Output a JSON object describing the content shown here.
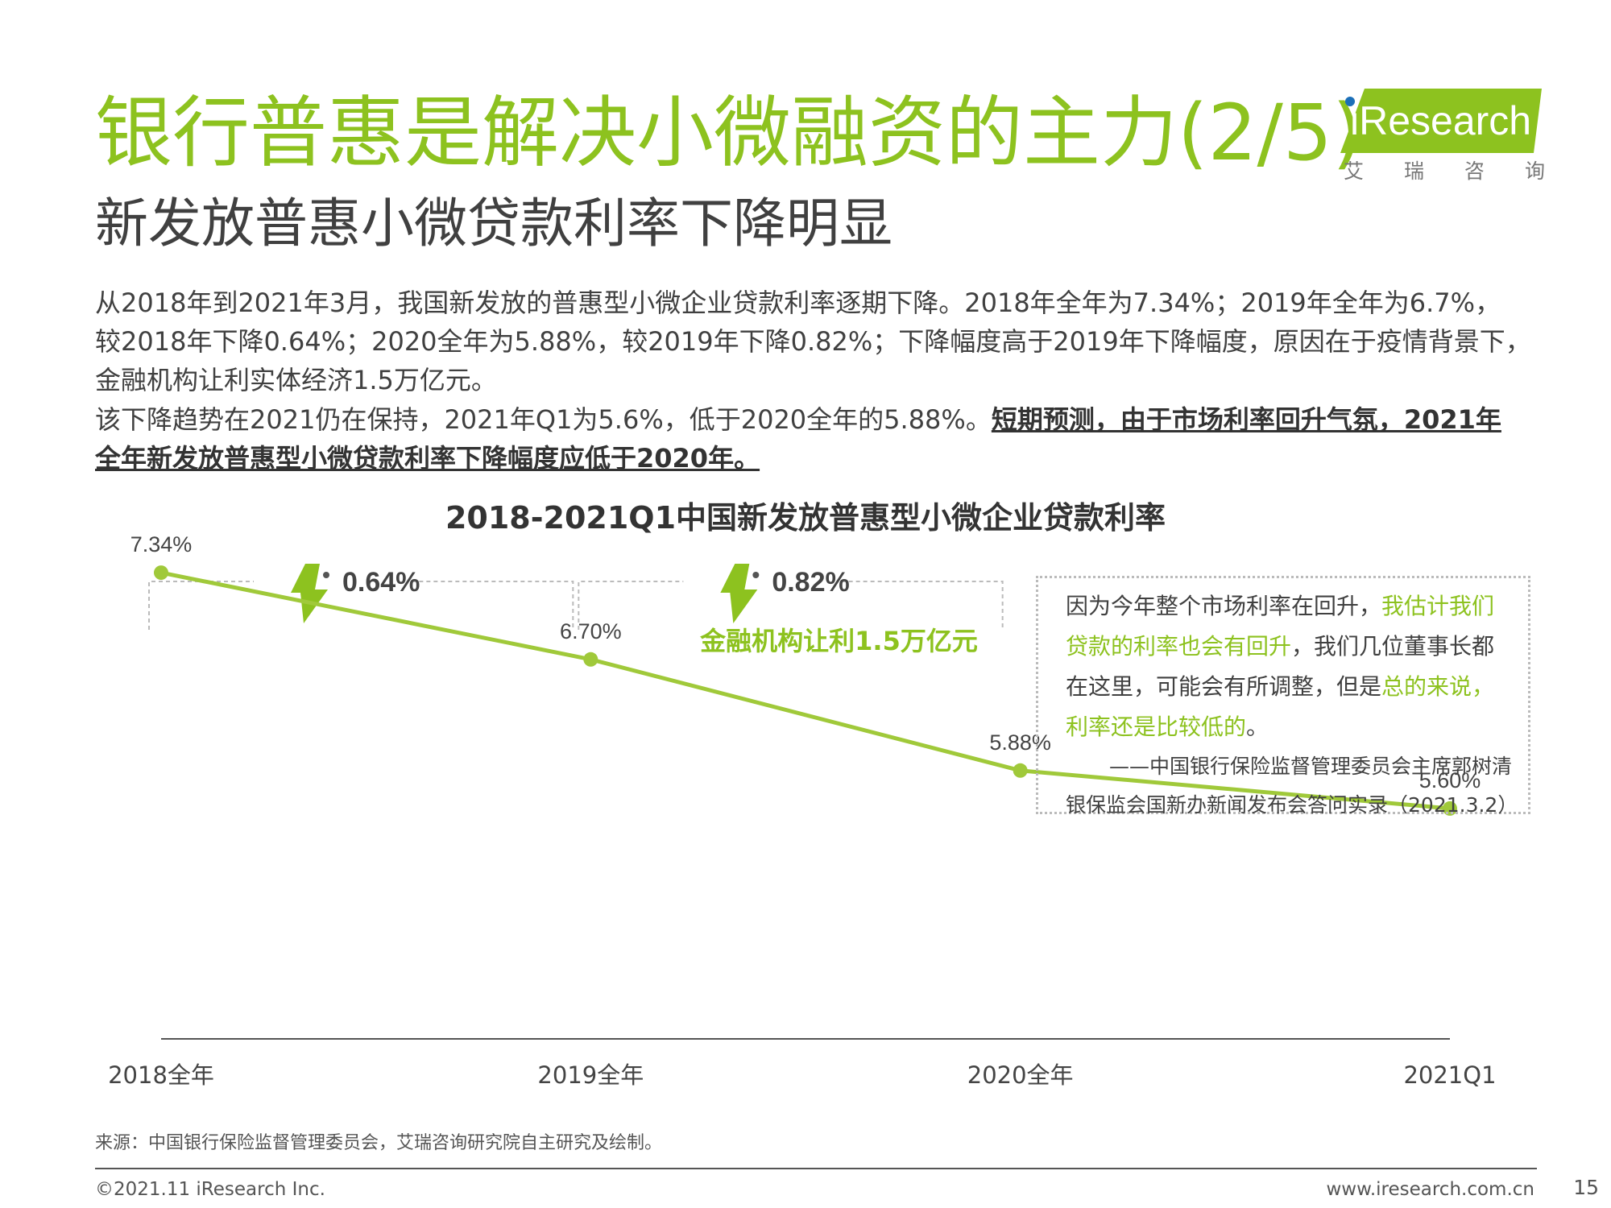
{
  "header": {
    "title": "银行普惠是解决小微融资的主力(2/5)",
    "subtitle": "新发放普惠小微贷款利率下降明显"
  },
  "logo": {
    "wordmark": "iResearch",
    "cn_chars": [
      "艾",
      "瑞",
      "咨",
      "询"
    ]
  },
  "body": {
    "para1": "从2018年到2021年3月，我国新发放的普惠型小微企业贷款利率逐期下降。2018年全年为7.34%；2019年全年为6.7%，较2018年下降0.64%；2020全年为5.88%，较2019年下降0.82%；下降幅度高于2019年下降幅度，原因在于疫情背景下，金融机构让利实体经济1.5万亿元。",
    "para1_lines": [
      "从2018年到2021年3月，我国新发放的普惠型小微企业贷款利率逐期下降。2018年全年为7.34%；2019年全年为6.7%，",
      "较2018年下降0.64%；2020全年为5.88%，较2019年下降0.82%；下降幅度高于2019年下降幅度，原因在于疫情背景下，",
      "金融机构让利实体经济1.5万亿元。"
    ],
    "para2_normal": "该下降趋势在2021仍在保持，2021年Q1为5.6%，低于2020全年的5.88%。",
    "para2_bold_line1": "短期预测，由于市场利率回升气氛，2021年",
    "para2_bold_line2": "全年新发放普惠型小微贷款利率下降幅度应低于2020年。"
  },
  "chart_data": {
    "type": "line",
    "title": "2018-2021Q1中国新发放普惠型小微企业贷款利率",
    "categories": [
      "2018全年",
      "2019全年",
      "2020全年",
      "2021Q1"
    ],
    "values": [
      7.34,
      6.7,
      5.88,
      5.6
    ],
    "data_labels": [
      "7.34%",
      "6.70%",
      "5.88%",
      "5.60%"
    ],
    "ylim": [
      3.9,
      8.0
    ],
    "grid": false,
    "annotations": [
      {
        "text": "0.64%",
        "from": "2018全年",
        "to": "2019全年"
      },
      {
        "text": "0.82%",
        "from": "2019全年",
        "to": "2020全年",
        "note": "金融机构让利1.5万亿元"
      }
    ],
    "color": "#a0c93a"
  },
  "quote": {
    "seg1": "因为今年整个市场利率在回升，",
    "seg2": "我估计我们贷款的利率也会有回升",
    "seg3": "，我们几位董事长都在这里，可能会有所调整，但是",
    "seg4": "总的来说，利率还是比较低的",
    "seg5": "。",
    "attribution1": "——中国银行保险监督管理委员会主席郭树清",
    "attribution2": "银保监会国新办新闻发布会答问实录（2021.3.2）"
  },
  "footer": {
    "source": "来源：中国银行保险监督管理委员会，艾瑞咨询研究院自主研究及绘制。",
    "copyright": "©2021.11 iResearch Inc.",
    "website": "www.iresearch.com.cn",
    "page_number": "15"
  },
  "colors": {
    "accent": "#8dc21f",
    "line": "#a0c93a",
    "text": "#404040"
  }
}
